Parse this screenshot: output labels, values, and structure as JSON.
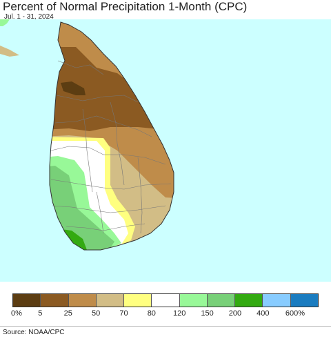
{
  "header": {
    "title": "Percent of Normal Precipitation 1-Month (CPC)",
    "subtitle": "Jul. 1 - 31, 2024"
  },
  "map": {
    "ocean_color": "#ccffff",
    "regions": [
      {
        "name": "extreme-dry-spot",
        "color": "#5c3d12"
      },
      {
        "name": "north-dry",
        "color": "#8b5a22"
      },
      {
        "name": "east-dry",
        "color": "#bf8c4a"
      },
      {
        "name": "south-east-dry",
        "color": "#d2bd86"
      },
      {
        "name": "near-normal-band",
        "color": "#ffff80"
      },
      {
        "name": "central-normal",
        "color": "#ffffff"
      },
      {
        "name": "south-west-wet-light",
        "color": "#98f898"
      },
      {
        "name": "south-west-wet",
        "color": "#78d078"
      },
      {
        "name": "south-west-very-wet",
        "color": "#33aa11"
      }
    ]
  },
  "legend": {
    "colors": [
      "#5c3d12",
      "#8b5a22",
      "#bf8c4a",
      "#d2bd86",
      "#ffff80",
      "#ffffff",
      "#98f898",
      "#78d078",
      "#33aa11",
      "#88ccff",
      "#1a7cc0"
    ],
    "labels": [
      "0%",
      "5",
      "25",
      "50",
      "70",
      "80",
      "120",
      "150",
      "200",
      "400",
      "600%"
    ]
  },
  "footer": {
    "source": "Source: NOAA/CPC"
  }
}
